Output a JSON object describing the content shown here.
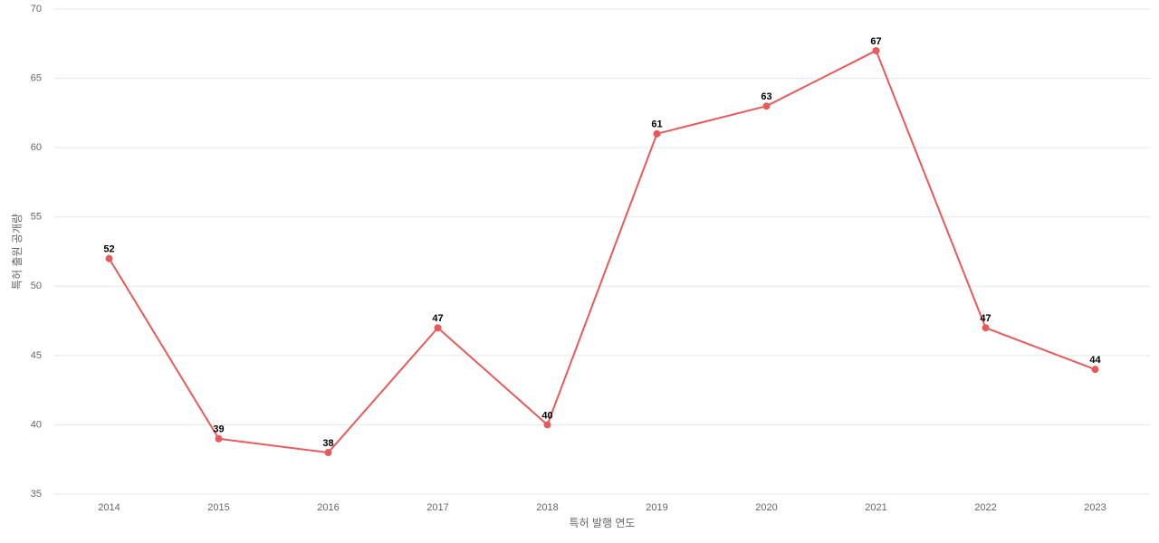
{
  "chart_data": {
    "type": "line",
    "x_label": "특허 발행 연도",
    "y_label": "특허 출원 공개량",
    "categories": [
      "2014",
      "2015",
      "2016",
      "2017",
      "2018",
      "2019",
      "2020",
      "2021",
      "2022",
      "2023"
    ],
    "series": [
      {
        "color": "#e85a5a",
        "values": [
          52,
          39,
          38,
          47,
          40,
          61,
          63,
          67,
          47,
          44
        ]
      }
    ],
    "ylim": [
      35,
      70
    ],
    "yticks": [
      35,
      40,
      45,
      50,
      55,
      60,
      65,
      70
    ],
    "grid": true
  }
}
